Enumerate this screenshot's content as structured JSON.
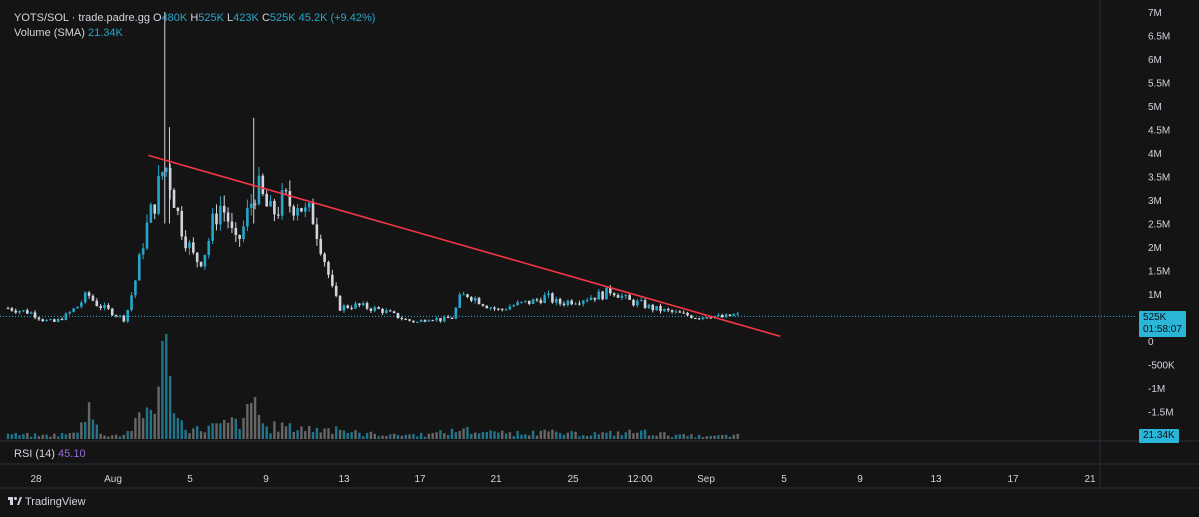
{
  "header": {
    "pair": "YOTS/SOL · trade.padre.gg",
    "o_label": "O",
    "o_value": "480K",
    "h_label": "H",
    "h_value": "525K",
    "l_label": "L",
    "l_value": "423K",
    "c_label": "C",
    "c_value": "525K",
    "change": "45.2K (+9.42%)",
    "volume_label": "Volume (SMA)",
    "volume_value": "21.34K"
  },
  "rsi": {
    "label": "RSI (14)",
    "value": "45.10"
  },
  "price_badge": {
    "price": "525K",
    "countdown": "01:58:07"
  },
  "volume_badge": "21.34K",
  "brand": "TradingView",
  "colors": {
    "up": "#26a6c9",
    "down": "#d1d4dc",
    "trendline": "#f23645",
    "background": "#141414"
  },
  "chart_data": {
    "type": "candlestick",
    "y_axis": {
      "ticks": [
        "7M",
        "6.5M",
        "6M",
        "5.5M",
        "5M",
        "4.5M",
        "4M",
        "3.5M",
        "3M",
        "2.5M",
        "2M",
        "1.5M",
        "1M",
        "0",
        "-500K",
        "-1M",
        "-1.5M"
      ],
      "tick_values": [
        7000000,
        6500000,
        6000000,
        5500000,
        5000000,
        4500000,
        4000000,
        3500000,
        3000000,
        2500000,
        2000000,
        1500000,
        1000000,
        0,
        -500000,
        -1000000,
        -1500000
      ],
      "range": [
        -1600000,
        7000000
      ]
    },
    "x_axis": {
      "ticks": [
        "28",
        "Aug",
        "5",
        "9",
        "13",
        "17",
        "21",
        "25",
        "12:00",
        "Sep",
        "5",
        "9",
        "13",
        "17",
        "21"
      ]
    },
    "last_price": 525000,
    "price_series": [
      [
        0,
        0.7
      ],
      [
        2,
        0.6
      ],
      [
        3,
        0.45
      ],
      [
        4,
        0.4
      ],
      [
        5,
        0.55
      ],
      [
        6,
        0.75
      ],
      [
        6.8,
        1.0
      ],
      [
        7.5,
        0.8
      ],
      [
        8.2,
        0.7
      ],
      [
        9,
        0.6
      ],
      [
        10,
        0.45
      ],
      [
        11,
        1.4
      ],
      [
        11.6,
        2.2
      ],
      [
        12.2,
        2.7
      ],
      [
        12.8,
        3.2
      ],
      [
        13.4,
        3.8
      ],
      [
        14,
        3.3
      ],
      [
        14.6,
        2.6
      ],
      [
        15.2,
        2.2
      ],
      [
        15.8,
        1.8
      ],
      [
        16.4,
        1.7
      ],
      [
        17,
        2.0
      ],
      [
        17.6,
        2.6
      ],
      [
        18.2,
        2.9
      ],
      [
        18.8,
        2.6
      ],
      [
        19.4,
        2.0
      ],
      [
        20,
        2.3
      ],
      [
        20.6,
        2.8
      ],
      [
        21.2,
        3.3
      ],
      [
        21.8,
        3.0
      ],
      [
        22.4,
        2.7
      ],
      [
        23,
        2.8
      ],
      [
        23.6,
        3.0
      ],
      [
        24.2,
        2.9
      ],
      [
        24.8,
        3.0
      ],
      [
        25.4,
        2.7
      ],
      [
        26,
        2.7
      ],
      [
        26.6,
        2.2
      ],
      [
        27.2,
        1.6
      ],
      [
        27.8,
        1.0
      ],
      [
        28.4,
        0.7
      ],
      [
        29.2,
        0.75
      ],
      [
        30,
        0.75
      ],
      [
        31,
        0.7
      ],
      [
        32,
        0.65
      ],
      [
        33,
        0.55
      ],
      [
        34,
        0.45
      ],
      [
        35,
        0.4
      ],
      [
        36,
        0.5
      ],
      [
        37,
        0.45
      ],
      [
        38,
        0.5
      ],
      [
        38.6,
        0.9
      ],
      [
        39.2,
        1.0
      ],
      [
        40,
        0.9
      ],
      [
        41,
        0.75
      ],
      [
        42,
        0.65
      ],
      [
        43,
        0.75
      ],
      [
        44,
        0.8
      ],
      [
        45,
        0.85
      ],
      [
        46,
        0.95
      ],
      [
        47,
        0.8
      ],
      [
        48,
        0.85
      ],
      [
        49,
        0.9
      ],
      [
        50,
        0.95
      ],
      [
        51,
        1.0
      ],
      [
        51.6,
        1.1
      ],
      [
        52.2,
        1.0
      ],
      [
        53,
        0.85
      ],
      [
        54,
        0.8
      ],
      [
        55,
        0.7
      ],
      [
        56,
        0.65
      ],
      [
        57,
        0.6
      ],
      [
        58,
        0.55
      ],
      [
        59,
        0.5
      ],
      [
        60,
        0.55
      ],
      [
        61,
        0.5
      ],
      [
        62,
        0.55
      ]
    ],
    "spikes": [
      [
        13.4,
        7.0
      ],
      [
        21.0,
        4.75
      ],
      [
        13.8,
        4.55
      ]
    ],
    "volume": [
      [
        0,
        0.05
      ],
      [
        3,
        0.04
      ],
      [
        6,
        0.06
      ],
      [
        6.8,
        0.35
      ],
      [
        8,
        0.05
      ],
      [
        10,
        0.04
      ],
      [
        11,
        0.2
      ],
      [
        12,
        0.3
      ],
      [
        12.8,
        0.5
      ],
      [
        13.4,
        1.0
      ],
      [
        13.8,
        0.6
      ],
      [
        14.5,
        0.2
      ],
      [
        16,
        0.1
      ],
      [
        18,
        0.15
      ],
      [
        20,
        0.2
      ],
      [
        21,
        0.4
      ],
      [
        22,
        0.12
      ],
      [
        24,
        0.15
      ],
      [
        25,
        0.12
      ],
      [
        27,
        0.1
      ],
      [
        28,
        0.12
      ],
      [
        30,
        0.06
      ],
      [
        33,
        0.05
      ],
      [
        36,
        0.05
      ],
      [
        39,
        0.1
      ],
      [
        42,
        0.06
      ],
      [
        45,
        0.08
      ],
      [
        48,
        0.06
      ],
      [
        51,
        0.06
      ],
      [
        54,
        0.08
      ],
      [
        57,
        0.04
      ],
      [
        60,
        0.03
      ],
      [
        62,
        0.04
      ]
    ],
    "trendline": {
      "from": [
        12,
        3.95
      ],
      "to": [
        66,
        0.1
      ]
    }
  }
}
